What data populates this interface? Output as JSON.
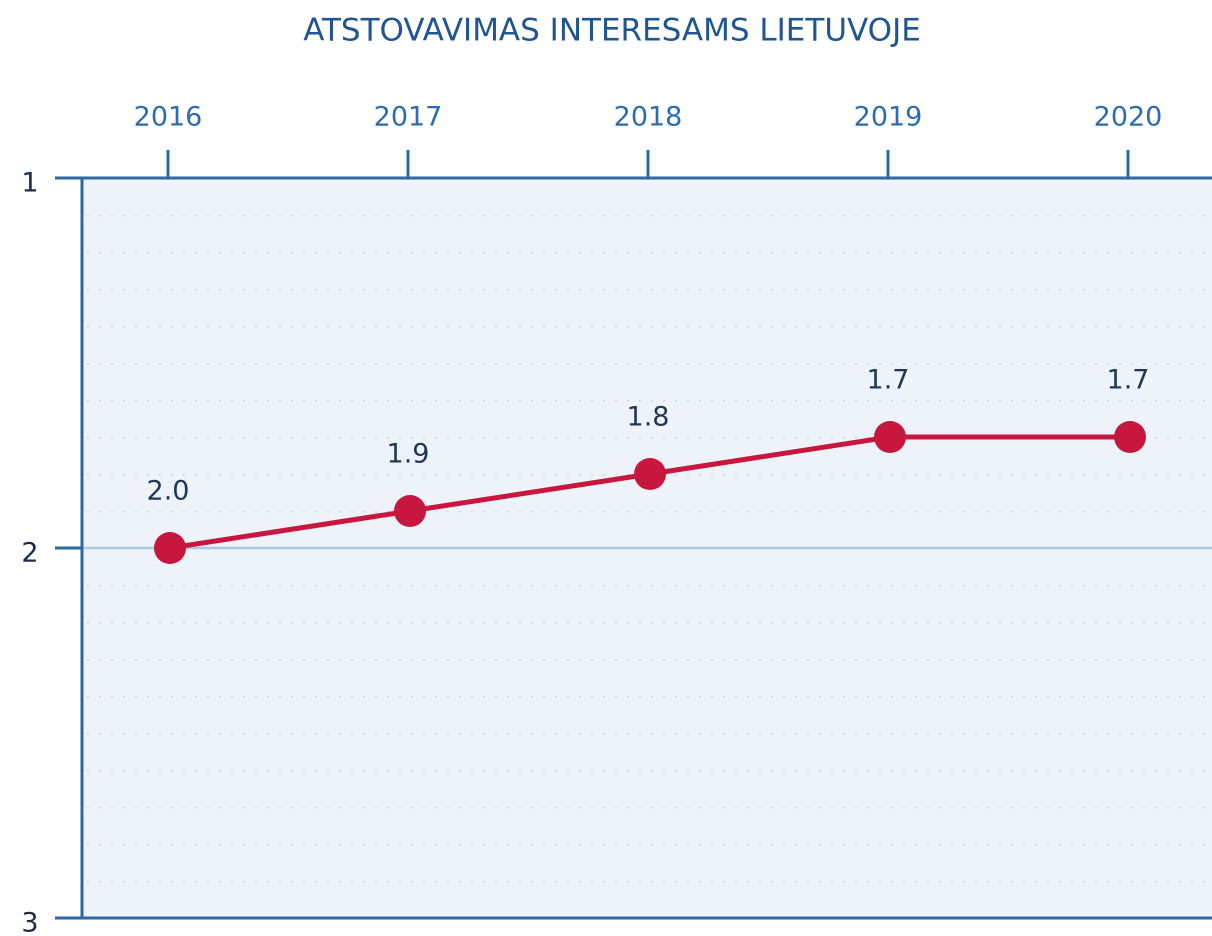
{
  "chart_data": {
    "type": "line",
    "title": "ATSTOVAVIMAS INTERESAMS LIETUVOJE",
    "categories": [
      "2016",
      "2017",
      "2018",
      "2019",
      "2020"
    ],
    "series": [
      {
        "name": null,
        "color": "#c8173f",
        "values": [
          2.0,
          1.9,
          1.8,
          1.7,
          1.7
        ],
        "value_labels": [
          "2.0",
          "1.9",
          "1.8",
          "1.7",
          "1.7"
        ]
      }
    ],
    "ylim": [
      1,
      3
    ],
    "y_inverted": true,
    "yticks": [
      1,
      2,
      3
    ],
    "grid": true,
    "x_axis_position": "top"
  }
}
